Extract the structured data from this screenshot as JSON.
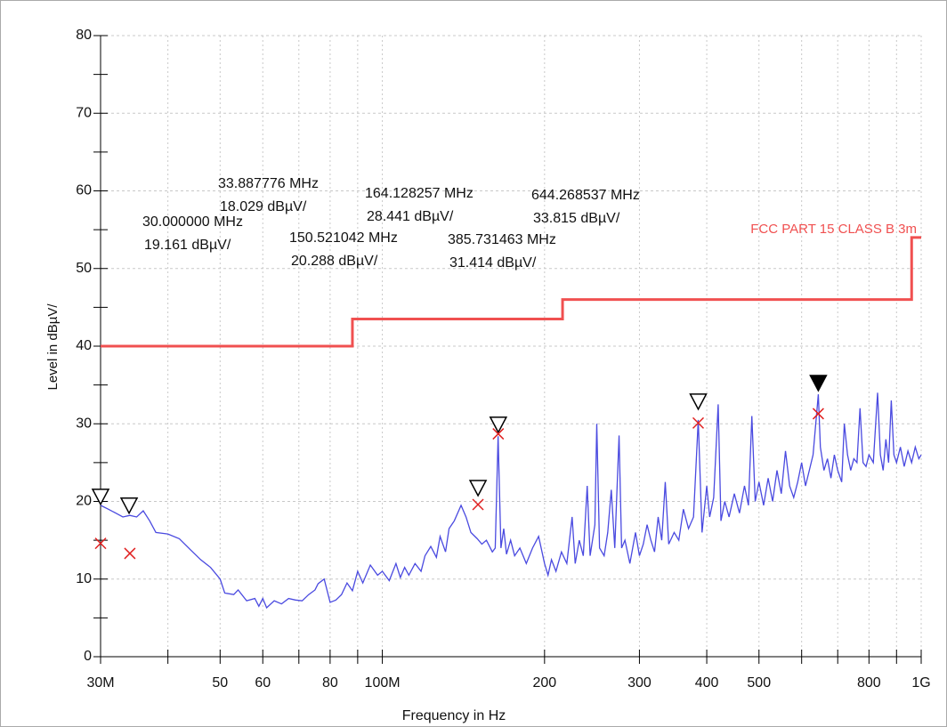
{
  "chart_data": {
    "type": "line",
    "x_label": "Frequency in Hz",
    "y_label": "Level in dBµV/",
    "xlog": true,
    "grid": true,
    "xlim": [
      30000000.0,
      1000000000.0
    ],
    "ylim": [
      0,
      80
    ],
    "xticks": [
      {
        "value": 30000000.0,
        "label": "30M"
      },
      {
        "value": 50000000.0,
        "label": "50"
      },
      {
        "value": 60000000.0,
        "label": "60"
      },
      {
        "value": 80000000.0,
        "label": "80"
      },
      {
        "value": 100000000.0,
        "label": "100M"
      },
      {
        "value": 200000000.0,
        "label": "200"
      },
      {
        "value": 300000000.0,
        "label": "300"
      },
      {
        "value": 400000000.0,
        "label": "400"
      },
      {
        "value": 500000000.0,
        "label": "500"
      },
      {
        "value": 800000000.0,
        "label": "800"
      },
      {
        "value": 1000000000.0,
        "label": "1G"
      }
    ],
    "xminorticks": [
      40000000.0,
      70000000.0,
      90000000.0,
      600000000.0,
      700000000.0,
      900000000.0
    ],
    "yticks": [
      0,
      10,
      20,
      30,
      40,
      50,
      60,
      70,
      80
    ],
    "yminorticks": [
      5,
      15,
      25,
      35,
      45,
      55,
      65,
      75
    ],
    "series": [
      {
        "color": "#4a4ae0",
        "x": [
          30000000.0,
          31000000.0,
          32000000.0,
          33000000.0,
          34000000.0,
          35000000.0,
          36000000.0,
          37000000.0,
          38000000.0,
          40000000.0,
          42000000.0,
          44000000.0,
          46000000.0,
          48000000.0,
          50000000.0,
          51000000.0,
          53000000.0,
          54000000.0,
          56000000.0,
          58000000.0,
          59000000.0,
          60000000.0,
          61000000.0,
          63000000.0,
          65000000.0,
          67000000.0,
          69000000.0,
          71000000.0,
          73000000.0,
          75000000.0,
          76000000.0,
          78000000.0,
          80000000.0,
          82000000.0,
          84000000.0,
          86000000.0,
          88000000.0,
          90000000.0,
          92000000.0,
          95000000.0,
          98000000.0,
          100000000.0,
          103000000.0,
          106000000.0,
          108000000.0,
          110000000.0,
          112000000.0,
          115000000.0,
          118000000.0,
          120000000.0,
          123000000.0,
          126000000.0,
          128000000.0,
          131000000.0,
          133000000.0,
          136000000.0,
          140000000.0,
          143000000.0,
          146000000.0,
          150000000.0,
          153000000.0,
          156000000.0,
          160000000.0,
          162000000.0,
          164000000.0,
          166000000.0,
          168000000.0,
          170000000.0,
          173000000.0,
          176000000.0,
          180000000.0,
          185000000.0,
          190000000.0,
          195000000.0,
          200000000.0,
          203000000.0,
          206000000.0,
          210000000.0,
          215000000.0,
          220000000.0,
          225000000.0,
          228000000.0,
          232000000.0,
          236000000.0,
          240000000.0,
          243000000.0,
          248000000.0,
          250000000.0,
          253000000.0,
          258000000.0,
          262000000.0,
          266000000.0,
          270000000.0,
          275000000.0,
          278000000.0,
          282000000.0,
          288000000.0,
          295000000.0,
          300000000.0,
          305000000.0,
          310000000.0,
          315000000.0,
          320000000.0,
          325000000.0,
          330000000.0,
          335000000.0,
          340000000.0,
          348000000.0,
          355000000.0,
          362000000.0,
          370000000.0,
          378000000.0,
          385700000.0,
          392000000.0,
          400000000.0,
          405000000.0,
          412000000.0,
          420000000.0,
          425000000.0,
          432000000.0,
          440000000.0,
          450000000.0,
          460000000.0,
          470000000.0,
          478000000.0,
          485000000.0,
          492000000.0,
          500000000.0,
          510000000.0,
          520000000.0,
          530000000.0,
          540000000.0,
          550000000.0,
          560000000.0,
          570000000.0,
          580000000.0,
          590000000.0,
          600000000.0,
          610000000.0,
          620000000.0,
          630000000.0,
          644300000.0,
          650000000.0,
          660000000.0,
          670000000.0,
          680000000.0,
          690000000.0,
          700000000.0,
          712000000.0,
          720000000.0,
          730000000.0,
          740000000.0,
          750000000.0,
          760000000.0,
          770000000.0,
          780000000.0,
          790000000.0,
          800000000.0,
          815000000.0,
          830000000.0,
          840000000.0,
          850000000.0,
          860000000.0,
          870000000.0,
          880000000.0,
          890000000.0,
          900000000.0,
          915000000.0,
          930000000.0,
          945000000.0,
          960000000.0,
          975000000.0,
          990000000.0,
          1000000000.0
        ],
        "values": [
          19.5,
          19,
          18.5,
          18,
          18.2,
          18,
          18.8,
          17.5,
          16,
          15.8,
          15.2,
          13.8,
          12.5,
          11.5,
          10,
          8.2,
          8,
          8.6,
          7.2,
          7.5,
          6.5,
          7.5,
          6.3,
          7.2,
          6.8,
          7.5,
          7.3,
          7.2,
          8,
          8.6,
          9.4,
          10,
          7,
          7.3,
          8,
          9.5,
          8.5,
          11,
          9.5,
          11.8,
          10.5,
          11,
          9.8,
          12,
          10.2,
          11.5,
          10.5,
          12,
          11,
          13,
          14.2,
          12.8,
          15.5,
          13.5,
          16.5,
          17.5,
          19.5,
          18,
          16,
          15.2,
          14.5,
          15,
          13.5,
          14,
          28.4,
          14,
          16.5,
          13.2,
          15,
          13,
          14,
          12,
          14,
          15.5,
          12,
          10.5,
          12.5,
          11,
          13.5,
          12,
          18,
          12,
          15,
          13,
          22,
          13,
          17,
          30,
          14,
          13,
          16,
          21.5,
          14,
          28.5,
          14,
          15,
          12,
          16,
          13,
          14.5,
          17,
          15,
          13.5,
          18,
          15,
          22.5,
          14.5,
          16,
          15,
          19,
          16.5,
          18,
          30.5,
          16,
          22,
          18,
          20.5,
          32.5,
          17.5,
          20,
          18,
          21,
          18.5,
          22,
          19.5,
          31,
          20,
          22.5,
          19.5,
          23,
          20,
          24,
          21,
          26.5,
          22,
          20.5,
          22.5,
          25,
          22,
          24,
          26,
          33.8,
          27,
          24,
          25.5,
          23,
          26,
          24,
          22.5,
          30,
          26,
          24,
          25.5,
          25,
          32,
          25,
          24.5,
          26,
          25,
          34,
          26,
          24,
          28,
          25,
          33,
          26,
          25,
          27,
          24.5,
          26.5,
          25,
          27,
          25.5,
          26
        ]
      },
      {
        "name": "FCC PART 15 CLASS B  3m",
        "color": "#f05050",
        "x": [
          30000000.0,
          88000000.0,
          88000000.0,
          216000000.0,
          216000000.0,
          960000000.0,
          960000000.0,
          1000000000.0
        ],
        "values": [
          40,
          40,
          43.5,
          43.5,
          46,
          46,
          54,
          54
        ]
      }
    ],
    "peaks": {
      "x": [
        30000000.0,
        33887776.0,
        150521042.0,
        164128257.0,
        385731463.0,
        644268537.0
      ],
      "values": [
        19.161,
        18.029,
        20.288,
        28.441,
        31.414,
        33.815
      ],
      "x_labels": [
        "30.000000 MHz",
        "33.887776 MHz",
        "150.521042 MHz",
        "164.128257 MHz",
        "385.731463 MHz",
        "644.268537 MHz"
      ],
      "value_labels": [
        "19.161 dBµV/",
        "18.029 dBµV/",
        "20.288 dBµV/",
        "28.441 dBµV/",
        "31.414 dBµV/",
        "33.815 dBµV/"
      ],
      "filled": [
        false,
        false,
        false,
        false,
        false,
        true
      ]
    },
    "quasi_peaks": {
      "color": "#e02020",
      "x": [
        30000000.0,
        34000000.0,
        150500000.0,
        164100000.0,
        385700000.0,
        644300000.0
      ],
      "values": [
        14.6,
        13.3,
        19.6,
        28.7,
        30.1,
        31.3
      ]
    }
  }
}
